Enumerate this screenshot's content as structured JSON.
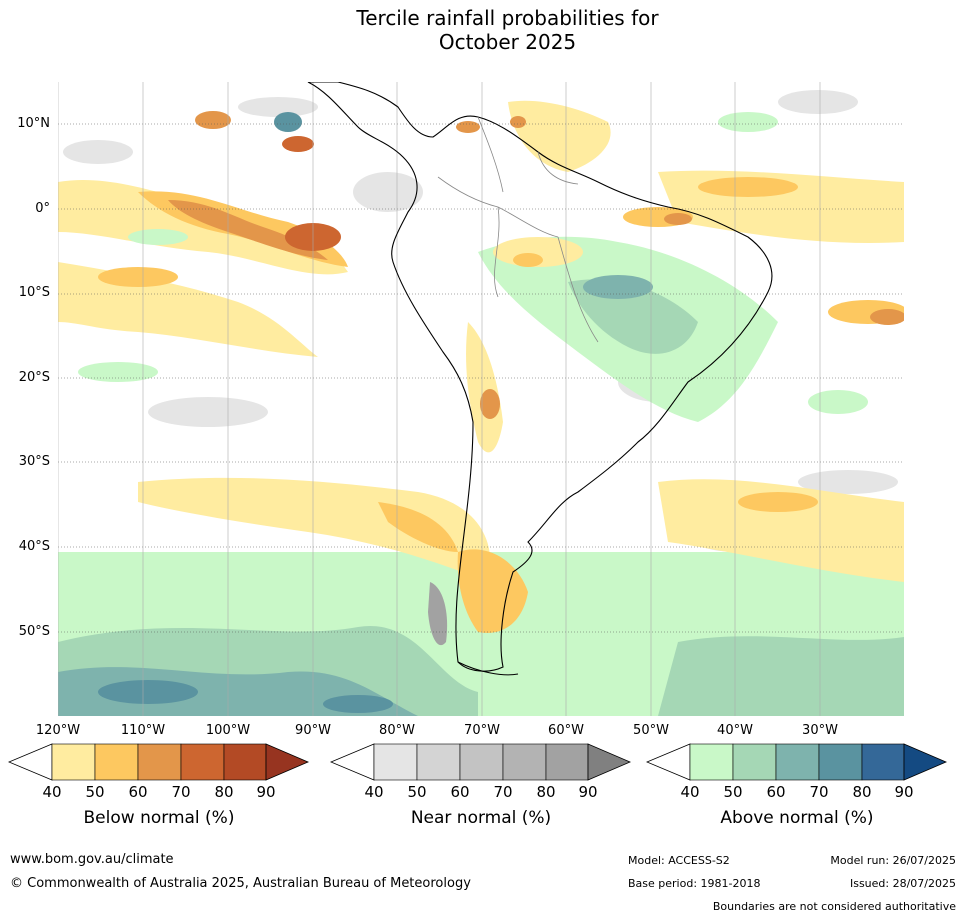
{
  "title": {
    "line1": "Tercile rainfall probabilities for",
    "line2": "October 2025"
  },
  "lat_labels": [
    "10°N",
    "0°",
    "10°S",
    "20°S",
    "30°S",
    "40°S",
    "50°S"
  ],
  "lon_labels": [
    "120°W",
    "110°W",
    "100°W",
    "90°W",
    "80°W",
    "70°W",
    "60°W",
    "50°W",
    "40°W",
    "30°W"
  ],
  "colorbars": [
    {
      "title": "Below normal (%)",
      "ticks": [
        "40",
        "50",
        "60",
        "70",
        "80",
        "90"
      ],
      "colors": [
        "#ffeca0",
        "#fdc860",
        "#e3964a",
        "#cd6630",
        "#b34a25",
        "#973420"
      ]
    },
    {
      "title": "Near normal (%)",
      "ticks": [
        "40",
        "50",
        "60",
        "70",
        "80",
        "90"
      ],
      "colors": [
        "#e5e5e5",
        "#d4d4d4",
        "#c3c3c3",
        "#b3b3b3",
        "#a2a2a2",
        "#808080"
      ]
    },
    {
      "title": "Above normal (%)",
      "ticks": [
        "40",
        "50",
        "60",
        "70",
        "80",
        "90"
      ],
      "colors": [
        "#c9f8c8",
        "#a5d7b5",
        "#7eb3ad",
        "#5a93a0",
        "#346898",
        "#144a82"
      ]
    }
  ],
  "footer": {
    "url": "www.bom.gov.au/climate",
    "copyright": "© Commonwealth of Australia 2025, Australian Bureau of Meteorology",
    "model": "Model: ACCESS-S2",
    "base_period": "Base period: 1981-2018",
    "model_run": "Model run: 26/07/2025",
    "issued": "Issued: 28/07/2025",
    "disclaimer": "Boundaries are not considered authoritative"
  }
}
